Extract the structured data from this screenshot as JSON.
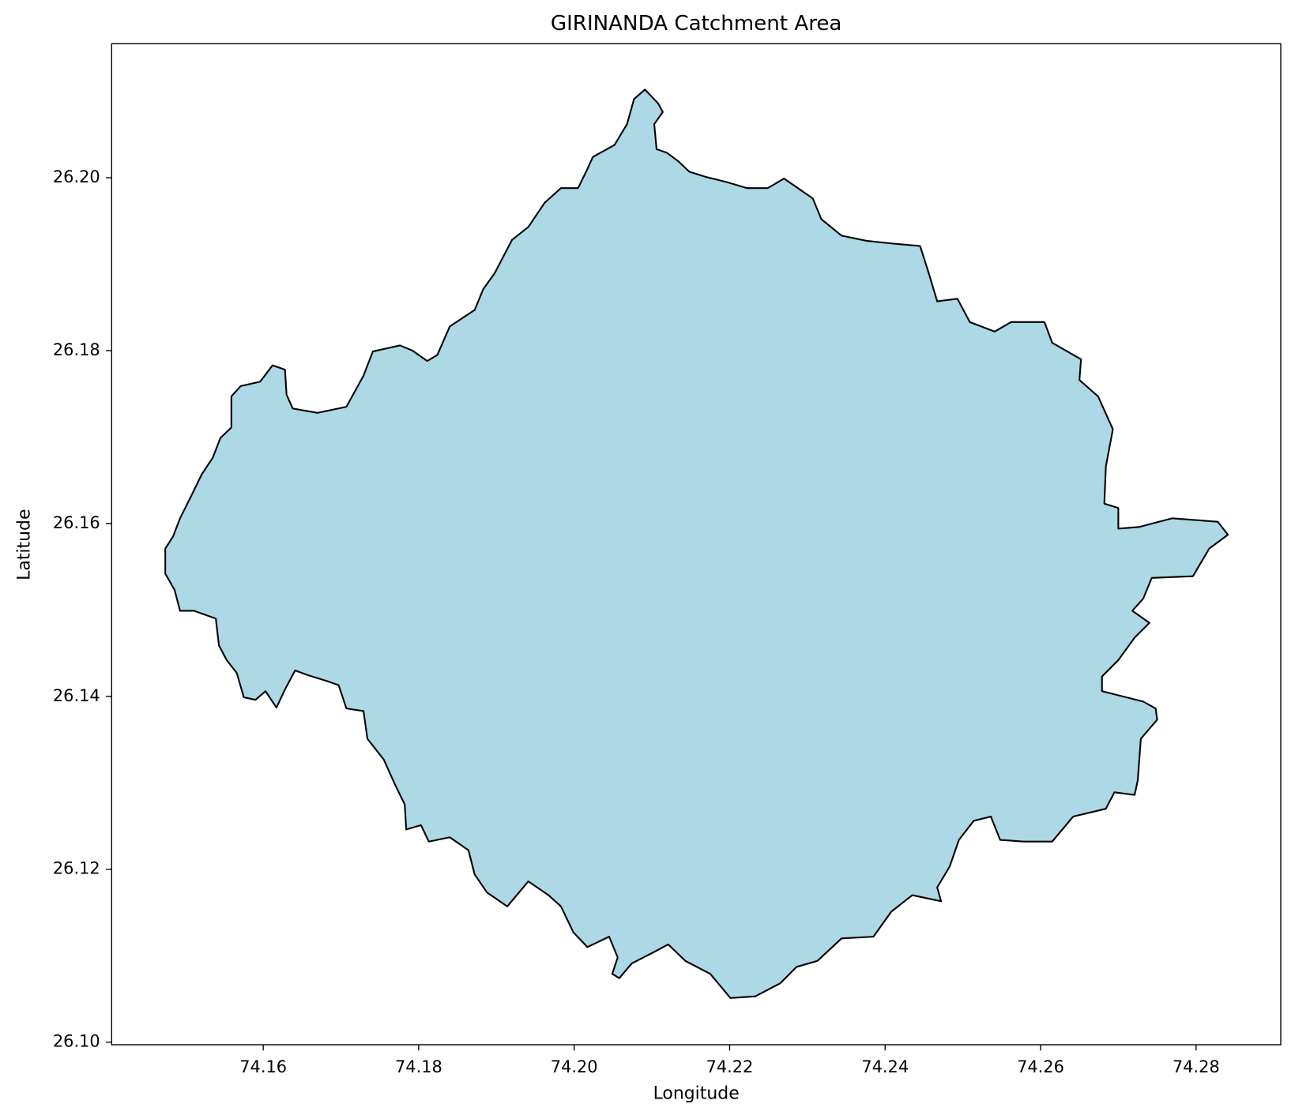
{
  "chart_data": {
    "type": "polygon",
    "title": "GIRINANDA Catchment Area",
    "x_label": "Longitude",
    "y_label": "Latitude",
    "fill": "#add8e6",
    "edgecolor": "#000000",
    "xlim": [
      74.1405,
      74.2909
    ],
    "ylim": [
      26.0997,
      26.2155
    ],
    "xticks": [
      74.16,
      74.18,
      {
        "value": 74.2,
        "label": "74.20"
      },
      74.22,
      74.24,
      74.26,
      74.28
    ],
    "yticks": [
      {
        "value": 26.1,
        "label": "26.10"
      },
      26.12,
      26.14,
      26.16,
      26.18,
      {
        "value": 26.2,
        "label": "26.20"
      }
    ],
    "x": [
      74.2091,
      74.2108,
      74.2114,
      74.2103,
      74.2106,
      74.2119,
      74.2134,
      74.2148,
      74.2169,
      74.2196,
      74.2222,
      74.2249,
      74.227,
      74.2307,
      74.2318,
      74.2344,
      74.2376,
      74.2408,
      74.2445,
      74.2456,
      74.2467,
      74.2493,
      74.2509,
      74.2541,
      74.2562,
      74.2605,
      74.2615,
      74.2652,
      74.265,
      74.2674,
      74.2693,
      74.2684,
      74.2682,
      74.27,
      74.27,
      74.2727,
      74.2769,
      74.2828,
      74.2841,
      74.2817,
      74.2796,
      74.2743,
      74.2732,
      74.2718,
      74.274,
      74.2721,
      74.27,
      74.2679,
      74.2679,
      74.2732,
      74.2748,
      74.275,
      74.2729,
      74.2725,
      74.2721,
      74.2695,
      74.2684,
      74.2642,
      74.2615,
      74.2578,
      74.2548,
      74.2536,
      74.2514,
      74.2495,
      74.2483,
      74.2467,
      74.2472,
      74.2435,
      74.2408,
      74.2385,
      74.2344,
      74.2313,
      74.2286,
      74.2265,
      74.2233,
      74.2201,
      74.2175,
      74.2143,
      74.2121,
      74.21,
      74.2074,
      74.2058,
      74.2049,
      74.2056,
      74.2045,
      74.2017,
      74.1999,
      74.1983,
      74.1967,
      74.1941,
      74.1914,
      74.1888,
      74.1872,
      74.1864,
      74.184,
      74.1813,
      74.1803,
      74.1784,
      74.1782,
      74.1769,
      74.1755,
      74.1734,
      74.1729,
      74.1707,
      74.1697,
      74.1681,
      74.1656,
      74.1641,
      74.1628,
      74.1617,
      74.1603,
      74.159,
      74.1575,
      74.1566,
      74.1553,
      74.1543,
      74.1539,
      74.1511,
      74.1493,
      74.1486,
      74.1474,
      74.1474,
      74.1484,
      74.1493,
      74.1508,
      74.1521,
      74.1535,
      74.1545,
      74.1559,
      74.1559,
      74.1571,
      74.1596,
      74.1612,
      74.1628,
      74.163,
      74.1638,
      74.167,
      74.1707,
      74.1729,
      74.1741,
      74.1776,
      74.1792,
      74.1811,
      74.1824,
      74.184,
      74.1872,
      74.1883,
      74.1898,
      74.192,
      74.1941,
      74.1962,
      74.1983,
      74.2005,
      74.2017,
      74.2024,
      74.2052,
      74.2068,
      74.2077
    ],
    "y": [
      26.2102,
      26.2086,
      26.2076,
      26.2062,
      26.2033,
      26.2029,
      26.2019,
      26.2007,
      26.2001,
      26.1995,
      26.1988,
      26.1988,
      26.1999,
      26.1976,
      26.1952,
      26.1933,
      26.1927,
      26.1924,
      26.1921,
      26.189,
      26.1857,
      26.186,
      26.1833,
      26.1822,
      26.1833,
      26.1833,
      26.1809,
      26.179,
      26.1766,
      26.1747,
      26.1709,
      26.1666,
      26.1623,
      26.1618,
      26.1594,
      26.1596,
      26.1606,
      26.1602,
      26.1587,
      26.1571,
      26.1539,
      26.1537,
      26.1513,
      26.1499,
      26.1485,
      26.1468,
      26.1442,
      26.1423,
      26.1406,
      26.1394,
      26.1386,
      26.1373,
      26.1351,
      26.1303,
      26.1286,
      26.1289,
      26.127,
      26.1261,
      26.1232,
      26.1232,
      26.1234,
      26.1261,
      26.1256,
      26.1234,
      26.1203,
      26.1179,
      26.1163,
      26.117,
      26.1151,
      26.1122,
      26.112,
      26.1094,
      26.1087,
      26.1068,
      26.1053,
      26.1051,
      26.1079,
      26.1094,
      26.1113,
      26.1103,
      26.1091,
      26.1074,
      26.1079,
      26.1098,
      26.1122,
      26.111,
      26.1127,
      26.1157,
      26.117,
      26.1186,
      26.1157,
      26.1173,
      26.1194,
      26.1222,
      26.1237,
      26.1232,
      26.1251,
      26.1246,
      26.1275,
      26.1299,
      26.1327,
      26.1351,
      26.1383,
      26.1386,
      26.1413,
      26.1418,
      26.1425,
      26.143,
      26.1408,
      26.1387,
      26.1406,
      26.1396,
      26.1399,
      26.1427,
      26.1442,
      26.1459,
      26.149,
      26.1499,
      26.1499,
      26.1523,
      26.1542,
      26.1571,
      26.1585,
      26.1606,
      26.1633,
      26.1657,
      26.1676,
      26.1699,
      26.1711,
      26.1747,
      26.1759,
      26.1764,
      26.1783,
      26.1778,
      26.1749,
      26.1733,
      26.1728,
      26.1735,
      26.1771,
      26.1799,
      26.1806,
      26.18,
      26.1788,
      26.1795,
      26.1828,
      26.1847,
      26.1871,
      26.189,
      26.1928,
      26.1943,
      26.1971,
      26.1988,
      26.1988,
      26.201,
      26.2024,
      26.2038,
      26.2062,
      26.2091
    ]
  }
}
